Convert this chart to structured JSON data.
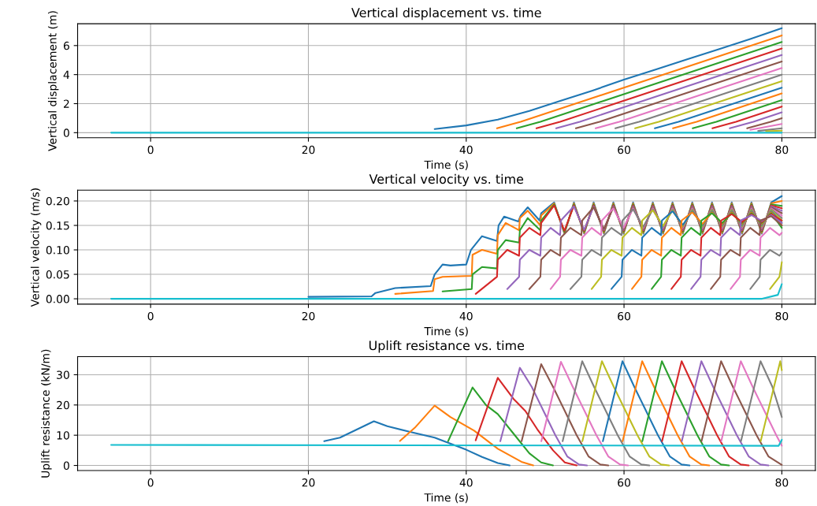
{
  "chart_data": [
    {
      "type": "line",
      "title": "Vertical displacement vs. time",
      "xlabel": "Time (s)",
      "ylabel": "Vertical displacement (m)",
      "xlim": [
        -9.25,
        84.25
      ],
      "xticks": [
        0,
        20,
        40,
        60,
        80
      ],
      "ylim": [
        -0.35,
        7.5
      ],
      "yticks": [
        0,
        2,
        4,
        6
      ],
      "grid": true,
      "series": [
        {
          "color": "#1f77b4",
          "x": [
            36,
            40,
            44,
            48,
            52,
            56,
            60,
            64,
            68,
            72,
            76,
            80
          ],
          "values": [
            0.25,
            0.5,
            0.9,
            1.5,
            2.2,
            2.9,
            3.65,
            4.35,
            5.05,
            5.75,
            6.45,
            7.2
          ]
        },
        {
          "color": "#ff7f0e",
          "x": [
            43.9,
            46.9,
            80
          ],
          "values": [
            0.3,
            0.75,
            6.7
          ]
        },
        {
          "color": "#2ca02c",
          "x": [
            46.4,
            49.4,
            80
          ],
          "values": [
            0.3,
            0.75,
            6.25
          ]
        },
        {
          "color": "#d62728",
          "x": [
            48.9,
            51.9,
            80
          ],
          "values": [
            0.3,
            0.75,
            5.8
          ]
        },
        {
          "color": "#9467bd",
          "x": [
            51.4,
            54.4,
            80
          ],
          "values": [
            0.3,
            0.75,
            5.35
          ]
        },
        {
          "color": "#8c564b",
          "x": [
            53.9,
            56.9,
            80
          ],
          "values": [
            0.3,
            0.75,
            4.9
          ]
        },
        {
          "color": "#e377c2",
          "x": [
            56.4,
            59.4,
            80
          ],
          "values": [
            0.3,
            0.75,
            4.45
          ]
        },
        {
          "color": "#7f7f7f",
          "x": [
            58.9,
            61.9,
            80
          ],
          "values": [
            0.3,
            0.75,
            4.0
          ]
        },
        {
          "color": "#bcbd22",
          "x": [
            61.4,
            64.4,
            80
          ],
          "values": [
            0.3,
            0.75,
            3.55
          ]
        },
        {
          "color": "#1f77b4",
          "x": [
            63.9,
            66.9,
            80
          ],
          "values": [
            0.3,
            0.75,
            3.1
          ]
        },
        {
          "color": "#ff7f0e",
          "x": [
            66.2,
            69.2,
            80
          ],
          "values": [
            0.3,
            0.75,
            2.7
          ]
        },
        {
          "color": "#2ca02c",
          "x": [
            68.7,
            71.7,
            80
          ],
          "values": [
            0.3,
            0.75,
            2.25
          ]
        },
        {
          "color": "#d62728",
          "x": [
            71.2,
            74.2,
            80
          ],
          "values": [
            0.3,
            0.75,
            1.8
          ]
        },
        {
          "color": "#9467bd",
          "x": [
            73.4,
            76.4,
            80
          ],
          "values": [
            0.3,
            0.75,
            1.4
          ]
        },
        {
          "color": "#8c564b",
          "x": [
            75.6,
            78.6,
            80
          ],
          "values": [
            0.3,
            0.75,
            1.0
          ]
        },
        {
          "color": "#e377c2",
          "x": [
            76,
            80
          ],
          "values": [
            0.2,
            0.6
          ]
        },
        {
          "color": "#7f7f7f",
          "x": [
            77,
            80
          ],
          "values": [
            0.12,
            0.3
          ]
        },
        {
          "color": "#bcbd22",
          "x": [
            78,
            80
          ],
          "values": [
            0.1,
            0.14
          ]
        },
        {
          "color": "#17becf",
          "x": [
            -5,
            80
          ],
          "values": [
            0,
            0
          ]
        }
      ]
    },
    {
      "type": "line",
      "title": "Vertical velocity vs. time",
      "xlabel": "Time (s)",
      "ylabel": "Vertical velocity (m/s)",
      "xlim": [
        -9.25,
        84.25
      ],
      "xticks": [
        0,
        20,
        40,
        60,
        80
      ],
      "ylim": [
        -0.011,
        0.222
      ],
      "yticks": [
        {
          "value": 0,
          "label": "0.00"
        },
        {
          "value": 0.05,
          "label": "0.05"
        },
        {
          "value": 0.1,
          "label": "0.10"
        },
        {
          "value": 0.15,
          "label": "0.15"
        },
        {
          "value": 0.2,
          "label": "0.20"
        }
      ],
      "grid": true,
      "series": [
        {
          "color": "#1f77b4",
          "x": [
            20,
            28,
            28.5,
            30,
            31,
            35.5,
            36,
            37,
            38,
            40,
            40.6,
            42,
            43.9,
            44.1,
            44.8,
            46.6,
            46.9,
            47.8,
            49.3,
            49.5,
            51.15,
            52.45,
            53.65,
            54.95,
            56.15,
            57.45,
            58.65,
            59.95,
            61.15,
            62.45,
            63.65,
            64.95,
            66.15,
            67.45,
            68.65,
            69.95,
            71.15,
            72.45,
            73.65,
            74.95,
            76.15,
            77.45,
            78.65,
            80
          ],
          "values": [
            0.004,
            0.005,
            0.012,
            0.018,
            0.022,
            0.026,
            0.05,
            0.07,
            0.068,
            0.07,
            0.1,
            0.128,
            0.118,
            0.15,
            0.168,
            0.158,
            0.17,
            0.187,
            0.16,
            0.175,
            0.197,
            0.133,
            0.197,
            0.133,
            0.197,
            0.133,
            0.197,
            0.133,
            0.197,
            0.133,
            0.197,
            0.133,
            0.197,
            0.133,
            0.197,
            0.133,
            0.197,
            0.133,
            0.197,
            0.133,
            0.197,
            0.133,
            0.197,
            0.21
          ]
        },
        {
          "color": "#ff7f0e",
          "x": [
            31,
            35.8,
            36,
            37,
            40.7,
            40.8,
            42,
            43.9,
            44,
            45,
            46.7,
            46.8,
            47.8,
            49.4,
            49.5,
            51.15,
            52.45,
            53.65,
            54.95,
            56.15,
            57.45,
            58.65,
            59.95,
            61.15,
            62.45,
            63.65,
            64.95,
            66.15,
            67.45,
            68.65,
            69.95,
            71.15,
            72.45,
            73.65,
            74.95,
            76.15,
            77.45,
            78.65,
            80
          ],
          "values": [
            0.01,
            0.016,
            0.04,
            0.045,
            0.047,
            0.09,
            0.1,
            0.092,
            0.13,
            0.155,
            0.14,
            0.165,
            0.18,
            0.15,
            0.17,
            0.195,
            0.135,
            0.195,
            0.135,
            0.195,
            0.135,
            0.195,
            0.135,
            0.195,
            0.135,
            0.195,
            0.135,
            0.195,
            0.135,
            0.195,
            0.135,
            0.195,
            0.135,
            0.195,
            0.135,
            0.195,
            0.135,
            0.195,
            0.2
          ]
        },
        {
          "color": "#2ca02c",
          "x": [
            37,
            40.7,
            40.8,
            42,
            43.9,
            44,
            45,
            46.7,
            46.8,
            47.8,
            49.4,
            49.5,
            51.15,
            52.45,
            53.65,
            54.95,
            56.15,
            57.45,
            58.65,
            59.95,
            61.15,
            62.45,
            63.65,
            64.95,
            66.15,
            67.45,
            68.65,
            69.95,
            71.15,
            72.45,
            73.65,
            74.95,
            76.15,
            77.45,
            78.65,
            80
          ],
          "values": [
            0.015,
            0.02,
            0.05,
            0.065,
            0.062,
            0.1,
            0.12,
            0.115,
            0.14,
            0.165,
            0.14,
            0.16,
            0.193,
            0.137,
            0.193,
            0.137,
            0.193,
            0.137,
            0.193,
            0.137,
            0.193,
            0.137,
            0.193,
            0.137,
            0.193,
            0.137,
            0.193,
            0.137,
            0.193,
            0.137,
            0.193,
            0.137,
            0.193,
            0.137,
            0.193,
            0.19
          ]
        },
        {
          "color": "#d62728",
          "x": [
            41.2,
            43.9,
            44,
            45.2,
            46.7,
            46.8,
            48,
            49.4,
            49.5,
            51.15,
            52.45,
            53.65,
            54.95,
            56.15,
            57.45,
            58.65,
            59.95,
            61.15,
            62.45,
            63.65,
            64.95,
            66.15,
            67.45,
            68.65,
            69.95,
            71.15,
            72.45,
            73.65,
            74.95,
            76.15,
            77.45,
            78.65,
            80
          ],
          "values": [
            0.01,
            0.045,
            0.08,
            0.1,
            0.088,
            0.125,
            0.145,
            0.13,
            0.155,
            0.191,
            0.139,
            0.191,
            0.139,
            0.191,
            0.139,
            0.191,
            0.139,
            0.191,
            0.139,
            0.191,
            0.139,
            0.191,
            0.139,
            0.191,
            0.139,
            0.191,
            0.139,
            0.191,
            0.139,
            0.191,
            0.139,
            0.191,
            0.185
          ]
        },
        {
          "color": "#9467bd",
          "x": [
            45.2,
            46.7,
            46.8,
            48,
            49.4,
            49.5,
            50.7,
            51.9,
            52,
            53.65,
            54.95,
            56.15,
            57.45,
            58.65,
            59.95,
            61.15,
            62.45,
            63.65,
            64.95,
            66.15,
            67.45,
            68.65,
            69.95,
            71.15,
            72.45,
            73.65,
            74.95,
            76.15,
            77.45,
            78.65,
            80
          ],
          "values": [
            0.02,
            0.045,
            0.08,
            0.1,
            0.088,
            0.125,
            0.145,
            0.13,
            0.16,
            0.189,
            0.141,
            0.189,
            0.141,
            0.189,
            0.141,
            0.189,
            0.141,
            0.189,
            0.141,
            0.189,
            0.141,
            0.189,
            0.141,
            0.189,
            0.141,
            0.189,
            0.141,
            0.189,
            0.141,
            0.189,
            0.18
          ]
        },
        {
          "color": "#8c564b",
          "x": [
            48,
            49.4,
            49.5,
            50.7,
            51.9,
            52,
            53.2,
            54.6,
            54.7,
            56.15,
            57.45,
            58.65,
            59.95,
            61.15,
            62.45,
            63.65,
            64.95,
            66.15,
            67.45,
            68.65,
            69.95,
            71.15,
            72.45,
            73.65,
            74.95,
            76.15,
            77.45,
            78.65,
            80
          ],
          "values": [
            0.02,
            0.045,
            0.08,
            0.1,
            0.088,
            0.125,
            0.145,
            0.13,
            0.16,
            0.187,
            0.143,
            0.187,
            0.143,
            0.187,
            0.143,
            0.187,
            0.143,
            0.187,
            0.143,
            0.187,
            0.143,
            0.187,
            0.143,
            0.187,
            0.143,
            0.187,
            0.143,
            0.187,
            0.175
          ]
        },
        {
          "color": "#e377c2",
          "x": [
            50.7,
            51.9,
            52,
            53.2,
            54.6,
            54.7,
            55.9,
            57.1,
            57.2,
            58.65,
            59.95,
            61.15,
            62.45,
            63.65,
            64.95,
            66.15,
            67.45,
            68.65,
            69.95,
            71.15,
            72.45,
            73.65,
            74.95,
            76.15,
            77.45,
            78.65,
            80
          ],
          "values": [
            0.02,
            0.045,
            0.08,
            0.1,
            0.088,
            0.125,
            0.145,
            0.13,
            0.16,
            0.185,
            0.145,
            0.185,
            0.145,
            0.185,
            0.145,
            0.185,
            0.145,
            0.185,
            0.145,
            0.185,
            0.145,
            0.185,
            0.145,
            0.185,
            0.145,
            0.185,
            0.17
          ]
        },
        {
          "color": "#7f7f7f",
          "x": [
            53.2,
            54.6,
            54.7,
            55.9,
            57.1,
            57.2,
            58.4,
            59.7,
            59.8,
            61.15,
            62.45,
            63.65,
            64.95,
            66.15,
            67.45,
            68.65,
            69.95,
            71.15,
            72.45,
            73.65,
            74.95,
            76.15,
            77.45,
            78.65,
            80
          ],
          "values": [
            0.02,
            0.045,
            0.08,
            0.1,
            0.088,
            0.125,
            0.145,
            0.13,
            0.16,
            0.183,
            0.147,
            0.183,
            0.147,
            0.183,
            0.147,
            0.183,
            0.147,
            0.183,
            0.147,
            0.183,
            0.147,
            0.183,
            0.147,
            0.183,
            0.165
          ]
        },
        {
          "color": "#bcbd22",
          "x": [
            55.9,
            57.1,
            57.2,
            58.4,
            59.7,
            59.8,
            61,
            62.2,
            62.3,
            63.65,
            64.95,
            66.15,
            67.45,
            68.65,
            69.95,
            71.15,
            72.45,
            73.65,
            74.95,
            76.15,
            77.45,
            78.65,
            80
          ],
          "values": [
            0.02,
            0.045,
            0.08,
            0.1,
            0.088,
            0.125,
            0.145,
            0.13,
            0.16,
            0.181,
            0.149,
            0.181,
            0.149,
            0.181,
            0.149,
            0.181,
            0.149,
            0.181,
            0.149,
            0.181,
            0.149,
            0.181,
            0.16
          ]
        },
        {
          "color": "#1f77b4",
          "x": [
            58.4,
            59.7,
            59.8,
            61,
            62.2,
            62.3,
            63.5,
            64.7,
            64.8,
            66.15,
            67.45,
            68.65,
            69.95,
            71.15,
            72.45,
            73.65,
            74.95,
            76.15,
            77.45,
            78.65,
            80
          ],
          "values": [
            0.02,
            0.045,
            0.08,
            0.1,
            0.088,
            0.125,
            0.145,
            0.13,
            0.16,
            0.179,
            0.151,
            0.179,
            0.151,
            0.179,
            0.151,
            0.179,
            0.151,
            0.179,
            0.151,
            0.179,
            0.155
          ]
        },
        {
          "color": "#ff7f0e",
          "x": [
            61,
            62.2,
            62.3,
            63.5,
            64.7,
            64.8,
            66,
            67.2,
            67.3,
            68.65,
            69.95,
            71.15,
            72.45,
            73.65,
            74.95,
            76.15,
            77.45,
            78.65,
            80
          ],
          "values": [
            0.02,
            0.045,
            0.08,
            0.1,
            0.088,
            0.125,
            0.145,
            0.13,
            0.16,
            0.177,
            0.153,
            0.177,
            0.153,
            0.177,
            0.153,
            0.177,
            0.153,
            0.177,
            0.15
          ]
        },
        {
          "color": "#2ca02c",
          "x": [
            63.5,
            64.7,
            64.8,
            66,
            67.2,
            67.3,
            68.5,
            69.7,
            69.8,
            71.15,
            72.45,
            73.65,
            74.95,
            76.15,
            77.45,
            78.65,
            80
          ],
          "values": [
            0.02,
            0.045,
            0.08,
            0.1,
            0.088,
            0.125,
            0.145,
            0.13,
            0.16,
            0.175,
            0.155,
            0.175,
            0.155,
            0.175,
            0.155,
            0.175,
            0.145
          ]
        },
        {
          "color": "#d62728",
          "x": [
            66,
            67.2,
            67.3,
            68.5,
            69.7,
            69.8,
            71,
            72.2,
            72.3,
            73.65,
            74.95,
            76.15,
            77.45,
            78.65,
            80
          ],
          "values": [
            0.02,
            0.045,
            0.08,
            0.1,
            0.088,
            0.125,
            0.145,
            0.13,
            0.16,
            0.173,
            0.157,
            0.173,
            0.157,
            0.173,
            0.16
          ]
        },
        {
          "color": "#9467bd",
          "x": [
            68.5,
            69.7,
            69.8,
            71,
            72.2,
            72.3,
            73.5,
            74.7,
            74.8,
            76.15,
            77.45,
            78.65,
            80
          ],
          "values": [
            0.02,
            0.045,
            0.08,
            0.1,
            0.088,
            0.125,
            0.145,
            0.13,
            0.16,
            0.171,
            0.159,
            0.171,
            0.155
          ]
        },
        {
          "color": "#8c564b",
          "x": [
            71,
            72.2,
            72.3,
            73.5,
            74.7,
            74.8,
            76,
            77.2,
            77.3,
            78.65,
            80
          ],
          "values": [
            0.02,
            0.045,
            0.08,
            0.1,
            0.088,
            0.125,
            0.145,
            0.13,
            0.16,
            0.169,
            0.15
          ]
        },
        {
          "color": "#e377c2",
          "x": [
            73.5,
            74.7,
            74.8,
            76,
            77.2,
            77.3,
            78.5,
            79.7,
            80
          ],
          "values": [
            0.02,
            0.045,
            0.08,
            0.1,
            0.088,
            0.125,
            0.145,
            0.13,
            0.135
          ]
        },
        {
          "color": "#7f7f7f",
          "x": [
            76,
            77.2,
            77.3,
            78.5,
            79.7,
            80
          ],
          "values": [
            0.02,
            0.045,
            0.08,
            0.1,
            0.088,
            0.095
          ]
        },
        {
          "color": "#bcbd22",
          "x": [
            78.5,
            79.7,
            80
          ],
          "values": [
            0.02,
            0.045,
            0.075
          ]
        },
        {
          "color": "#17becf",
          "x": [
            -5,
            77.5,
            79.5,
            80
          ],
          "values": [
            0,
            0,
            0.008,
            0.03
          ]
        }
      ]
    },
    {
      "type": "line",
      "title": "Uplift resistance vs. time",
      "xlabel": "Time (s)",
      "ylabel": "Uplift resistance (kN/m)",
      "xlim": [
        -9.25,
        84.25
      ],
      "xticks": [
        0,
        20,
        40,
        60,
        80
      ],
      "ylim": [
        -1.7,
        36
      ],
      "yticks": [
        0,
        10,
        20,
        30
      ],
      "grid": true,
      "series": [
        {
          "color": "#1f77b4",
          "x": [
            22,
            24,
            28.3,
            30,
            33,
            36,
            40,
            42,
            44,
            45.5
          ],
          "values": [
            8.0,
            9.2,
            14.6,
            13,
            11,
            9.2,
            5.2,
            2.8,
            0.8,
            0
          ]
        },
        {
          "color": "#ff7f0e",
          "x": [
            31.6,
            33.5,
            36,
            38,
            40,
            41,
            44,
            47,
            48.5
          ],
          "values": [
            8.1,
            12.5,
            19.8,
            16,
            13,
            11.5,
            5.5,
            1.2,
            0
          ]
        },
        {
          "color": "#2ca02c",
          "x": [
            37.7,
            39,
            40.8,
            42.5,
            44,
            46,
            48,
            49.5,
            51
          ],
          "values": [
            8.0,
            15.5,
            25.8,
            20,
            17,
            10.5,
            4,
            1,
            0
          ]
        },
        {
          "color": "#d62728",
          "x": [
            41.2,
            44,
            46,
            47.5,
            49,
            51,
            52.5,
            54
          ],
          "values": [
            8.3,
            29,
            22,
            18,
            12,
            5,
            1,
            0
          ]
        },
        {
          "color": "#9467bd",
          "x": [
            44.32,
            46.8,
            48.3,
            49.8,
            51.3,
            52.8,
            54.3,
            55.3
          ],
          "values": [
            8.0,
            32.3,
            26,
            18,
            10,
            3,
            0.3,
            0
          ]
        },
        {
          "color": "#8c564b",
          "x": [
            47.02,
            49.5,
            51,
            52.5,
            54,
            55.5,
            57,
            58
          ],
          "values": [
            8.0,
            33.5,
            26,
            18,
            10,
            3,
            0.3,
            0
          ]
        },
        {
          "color": "#e377c2",
          "x": [
            49.52,
            52,
            53.5,
            55,
            56.5,
            58,
            59.5,
            60.5
          ],
          "values": [
            8.0,
            34.3,
            26,
            18,
            10,
            3,
            0.3,
            0
          ]
        },
        {
          "color": "#7f7f7f",
          "x": [
            52.22,
            54.7,
            56.2,
            57.7,
            59.2,
            60.7,
            62.2,
            63.2
          ],
          "values": [
            8.0,
            34.5,
            26,
            18,
            10,
            3,
            0.3,
            0
          ]
        },
        {
          "color": "#bcbd22",
          "x": [
            54.72,
            57.2,
            58.7,
            60.2,
            61.7,
            63.2,
            64.7,
            65.7
          ],
          "values": [
            8.0,
            34.5,
            26,
            18,
            10,
            3,
            0.3,
            0
          ]
        },
        {
          "color": "#1f77b4",
          "x": [
            57.32,
            59.8,
            61.3,
            62.8,
            64.3,
            65.8,
            67.3,
            68.3
          ],
          "values": [
            8.0,
            34.5,
            26,
            18,
            10,
            3,
            0.3,
            0
          ]
        },
        {
          "color": "#ff7f0e",
          "x": [
            59.82,
            62.3,
            63.8,
            65.3,
            66.8,
            68.3,
            69.8,
            70.8
          ],
          "values": [
            8.0,
            34.5,
            26,
            18,
            10,
            3,
            0.3,
            0
          ]
        },
        {
          "color": "#2ca02c",
          "x": [
            62.32,
            64.8,
            66.3,
            67.8,
            69.3,
            70.8,
            72.3,
            73.3
          ],
          "values": [
            8.0,
            34.5,
            26,
            18,
            10,
            3,
            0.3,
            0
          ]
        },
        {
          "color": "#d62728",
          "x": [
            64.82,
            67.3,
            68.8,
            70.3,
            71.8,
            73.3,
            74.8,
            75.8
          ],
          "values": [
            8.0,
            34.5,
            26,
            18,
            10,
            3,
            0.3,
            0
          ]
        },
        {
          "color": "#9467bd",
          "x": [
            67.32,
            69.8,
            71.3,
            72.8,
            74.3,
            75.8,
            77.3,
            78.3
          ],
          "values": [
            8.0,
            34.5,
            26,
            18,
            10,
            3,
            0.3,
            0
          ]
        },
        {
          "color": "#8c564b",
          "x": [
            69.82,
            72.3,
            73.8,
            75.3,
            76.8,
            78.3,
            80
          ],
          "values": [
            8.0,
            34.5,
            26,
            18,
            10,
            3,
            0.2
          ]
        },
        {
          "color": "#e377c2",
          "x": [
            72.32,
            74.8,
            76.3,
            77.8,
            79.3,
            80
          ],
          "values": [
            8.0,
            34.5,
            26,
            18,
            10,
            6.5
          ]
        },
        {
          "color": "#7f7f7f",
          "x": [
            74.82,
            77.3,
            78.8,
            80
          ],
          "values": [
            8.0,
            34.5,
            26,
            16
          ]
        },
        {
          "color": "#bcbd22",
          "x": [
            77.32,
            79.8,
            80
          ],
          "values": [
            8.0,
            34.5,
            31.5
          ]
        },
        {
          "color": "#17becf",
          "x": [
            -5,
            79.6,
            80
          ],
          "values": [
            6.8,
            6.5,
            8.5
          ]
        }
      ]
    }
  ]
}
